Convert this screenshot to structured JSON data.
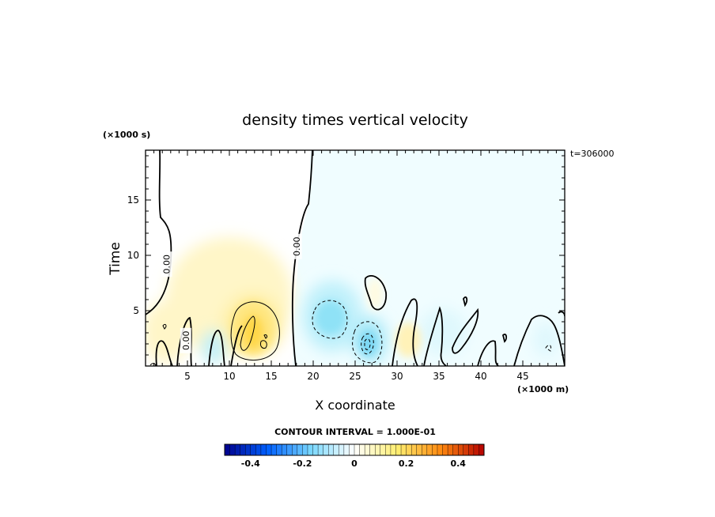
{
  "chart_data": {
    "type": "heatmap",
    "title": "density times vertical velocity",
    "xlabel": "X coordinate",
    "ylabel": "Time",
    "x_unit": "(×1000 m)",
    "y_unit": "(×1000 s)",
    "time_stamp": "t=306000",
    "contour_interval_label": "CONTOUR INTERVAL = 1.000E-01",
    "xlim": [
      0,
      50
    ],
    "ylim": [
      0,
      19.5
    ],
    "x_ticks": [
      5,
      10,
      15,
      20,
      25,
      30,
      35,
      40,
      45
    ],
    "y_ticks": [
      5,
      10,
      15
    ],
    "contour_labels": [
      {
        "text": "0.00",
        "x": 2.5,
        "y": 9.2
      },
      {
        "text": "0.00",
        "x": 4.8,
        "y": 2.3
      },
      {
        "text": "0.00",
        "x": 18.0,
        "y": 10.8
      }
    ],
    "features": [
      {
        "sign": "positive",
        "x": 13.0,
        "y": 2.7,
        "peak": 0.12
      },
      {
        "sign": "positive",
        "x": 11.5,
        "y": 7.5,
        "peak": 0.05
      },
      {
        "sign": "negative",
        "x": 22.5,
        "y": 3.3,
        "peak": -0.14
      },
      {
        "sign": "negative",
        "x": 26.8,
        "y": 2.3,
        "peak": -0.28
      },
      {
        "sign": "negative",
        "x": 9.0,
        "y": 1.2,
        "peak": -0.08
      },
      {
        "sign": "positive",
        "x": 30.0,
        "y": 2.5,
        "peak": 0.05
      },
      {
        "sign": "negative",
        "x": 36.0,
        "y": 4.5,
        "peak": -0.04
      }
    ],
    "colorbar": {
      "min": -0.5,
      "max": 0.5,
      "n_bins": 50,
      "ticks": [
        -0.4,
        -0.2,
        0,
        0.2,
        0.4
      ],
      "tick_labels": [
        "-0.4",
        "-0.2",
        "0",
        "0.2",
        "0.4"
      ],
      "colors": [
        "#00008c",
        "#0060ff",
        "#7ad8ff",
        "#ffffff",
        "#ffee70",
        "#ff8a10",
        "#b40000"
      ]
    }
  }
}
